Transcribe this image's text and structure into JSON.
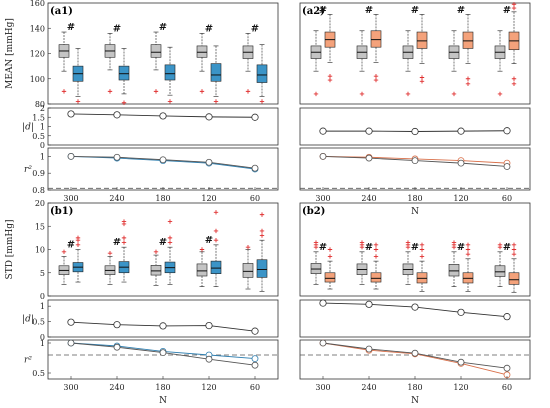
{
  "colors": {
    "gray": "#c4c4c4",
    "blue": "#3b94c7",
    "orange": "#f4a27b",
    "outlier": "#e03030",
    "line": "#333333",
    "dashed": "#555555"
  },
  "chart_data": {
    "type": "box-and-line",
    "panels": [
      {
        "label": "(a1)",
        "ylabel": "MEAN [mmHg]",
        "xticks": [
          "300",
          "240",
          "180",
          "120",
          "60"
        ],
        "xlabel": "",
        "box": {
          "ylim": [
            80,
            160
          ],
          "yticks": [
            "80",
            "100",
            "120",
            "140",
            "160"
          ],
          "groups": [
            {
              "n": "300",
              "gray": {
                "whislo": 106,
                "q1": 117,
                "med": 122,
                "q3": 127,
                "whishi": 137,
                "outliers": [
                  90
                ]
              },
              "color": {
                "whislo": 86,
                "q1": 98,
                "med": 104,
                "q3": 110,
                "whishi": 124,
                "outliers": [
                  82
                ]
              },
              "hash": true
            },
            {
              "n": "240",
              "gray": {
                "whislo": 107,
                "q1": 117,
                "med": 122,
                "q3": 127,
                "whishi": 136,
                "outliers": [
                  90
                ]
              },
              "color": {
                "whislo": 88,
                "q1": 99,
                "med": 104,
                "q3": 110,
                "whishi": 124,
                "outliers": [
                  81
                ]
              },
              "hash": true
            },
            {
              "n": "180",
              "gray": {
                "whislo": 107,
                "q1": 117,
                "med": 121,
                "q3": 127,
                "whishi": 137,
                "outliers": [
                  90
                ]
              },
              "color": {
                "whislo": 87,
                "q1": 99,
                "med": 104,
                "q3": 111,
                "whishi": 125,
                "outliers": [
                  82
                ]
              },
              "hash": true
            },
            {
              "n": "120",
              "gray": {
                "whislo": 106,
                "q1": 117,
                "med": 121,
                "q3": 126,
                "whishi": 136,
                "outliers": [
                  90
                ]
              },
              "color": {
                "whislo": 86,
                "q1": 98,
                "med": 103,
                "q3": 112,
                "whishi": 126,
                "outliers": [
                  82
                ]
              },
              "hash": true
            },
            {
              "n": "60",
              "gray": {
                "whislo": 106,
                "q1": 116,
                "med": 121,
                "q3": 126,
                "whishi": 136,
                "outliers": [
                  90
                ]
              },
              "color": {
                "whislo": 86,
                "q1": 97,
                "med": 103,
                "q3": 111,
                "whishi": 127,
                "outliers": [
                  82
                ]
              },
              "hash": true
            }
          ]
        },
        "d": {
          "ylim": [
            0,
            2
          ],
          "yticks": [
            "0",
            "0.5",
            "1",
            "1.5",
            "2"
          ],
          "values": [
            1.68,
            1.63,
            1.57,
            1.52,
            1.5
          ]
        },
        "r2": {
          "ylim": [
            0.8,
            1.05
          ],
          "yticks": [
            "0.8",
            "0.9",
            "1"
          ],
          "dashed": 0.81,
          "dark": [
            1.0,
            0.995,
            0.98,
            0.965,
            0.93
          ],
          "colored": [
            1.0,
            0.99,
            0.975,
            0.96,
            0.925
          ]
        }
      },
      {
        "label": "(a2)",
        "ylabel": "",
        "xticks": [
          "300",
          "240",
          "180",
          "120",
          "60"
        ],
        "xlabel": "N",
        "box": {
          "ylim": [
            80,
            160
          ],
          "yticks": [],
          "groups": [
            {
              "n": "300",
              "gray": {
                "whislo": 106,
                "q1": 116,
                "med": 121,
                "q3": 126,
                "whishi": 138,
                "outliers": [
                  88
                ]
              },
              "color": {
                "whislo": 113,
                "q1": 125,
                "med": 131,
                "q3": 137,
                "whishi": 151,
                "outliers": [
                  102,
                  99
                ]
              },
              "hash": true
            },
            {
              "n": "240",
              "gray": {
                "whislo": 106,
                "q1": 116,
                "med": 121,
                "q3": 126,
                "whishi": 138,
                "outliers": [
                  88
                ]
              },
              "color": {
                "whislo": 113,
                "q1": 125,
                "med": 131,
                "q3": 138,
                "whishi": 151,
                "outliers": [
                  102,
                  99
                ]
              },
              "hash": true
            },
            {
              "n": "180",
              "gray": {
                "whislo": 106,
                "q1": 116,
                "med": 121,
                "q3": 126,
                "whishi": 138,
                "outliers": [
                  88
                ]
              },
              "color": {
                "whislo": 112,
                "q1": 124,
                "med": 130,
                "q3": 137,
                "whishi": 151,
                "outliers": [
                  101,
                  98
                ]
              },
              "hash": true
            },
            {
              "n": "120",
              "gray": {
                "whislo": 106,
                "q1": 116,
                "med": 121,
                "q3": 126,
                "whishi": 138,
                "outliers": [
                  88
                ]
              },
              "color": {
                "whislo": 112,
                "q1": 124,
                "med": 130,
                "q3": 137,
                "whishi": 151,
                "outliers": [
                  100,
                  96
                ]
              },
              "hash": true
            },
            {
              "n": "60",
              "gray": {
                "whislo": 106,
                "q1": 116,
                "med": 121,
                "q3": 126,
                "whishi": 138,
                "outliers": [
                  88
                ]
              },
              "color": {
                "whislo": 112,
                "q1": 123,
                "med": 130,
                "q3": 137,
                "whishi": 153,
                "outliers": [
                  100,
                  96,
                  156,
                  159
                ]
              },
              "hash": true
            }
          ]
        },
        "d": {
          "ylim": [
            0,
            2
          ],
          "yticks": [],
          "values": [
            0.75,
            0.75,
            0.73,
            0.75,
            0.77
          ]
        },
        "r2": {
          "ylim": [
            0.8,
            1.05
          ],
          "yticks": [],
          "dashed": 0.81,
          "dark": [
            1.0,
            0.99,
            0.975,
            0.96,
            0.94
          ],
          "colored": [
            1.0,
            0.995,
            0.985,
            0.975,
            0.96
          ]
        }
      },
      {
        "label": "(b1)",
        "ylabel": "STD [mmHg]",
        "xticks": [
          "300",
          "240",
          "180",
          "120",
          "60"
        ],
        "xlabel": "N",
        "box": {
          "ylim": [
            0,
            20
          ],
          "yticks": [
            "0",
            "5",
            "10",
            "15",
            "20"
          ],
          "groups": [
            {
              "n": "300",
              "gray": {
                "whislo": 2.5,
                "q1": 4.6,
                "med": 5.5,
                "q3": 6.5,
                "whishi": 8.5,
                "outliers": [
                  9.5
                ]
              },
              "color": {
                "whislo": 3,
                "q1": 5.2,
                "med": 6.2,
                "q3": 7.2,
                "whishi": 10,
                "outliers": [
                  11,
                  12,
                  12.5
                ]
              },
              "hash": true
            },
            {
              "n": "240",
              "gray": {
                "whislo": 2.5,
                "q1": 4.6,
                "med": 5.5,
                "q3": 6.5,
                "whishi": 8.5,
                "outliers": [
                  9.2
                ]
              },
              "color": {
                "whislo": 3,
                "q1": 5,
                "med": 6.2,
                "q3": 7.4,
                "whishi": 10.5,
                "outliers": [
                  11.5,
                  12.5,
                  15.5,
                  16
                ]
              },
              "hash": true
            },
            {
              "n": "180",
              "gray": {
                "whislo": 2.3,
                "q1": 4.5,
                "med": 5.4,
                "q3": 6.6,
                "whishi": 8.8,
                "outliers": [
                  9.5
                ]
              },
              "color": {
                "whislo": 2.5,
                "q1": 5,
                "med": 6.1,
                "q3": 7.3,
                "whishi": 10.5,
                "outliers": [
                  11.5,
                  12.5,
                  16
                ]
              },
              "hash": true
            },
            {
              "n": "120",
              "gray": {
                "whislo": 2,
                "q1": 4.3,
                "med": 5.4,
                "q3": 6.9,
                "whishi": 9.5,
                "outliers": [
                  10
                ]
              },
              "color": {
                "whislo": 2,
                "q1": 4.8,
                "med": 6,
                "q3": 7.5,
                "whishi": 11,
                "outliers": [
                  12,
                  14,
                  18
                ]
              },
              "hash": true
            },
            {
              "n": "60",
              "gray": {
                "whislo": 1.5,
                "q1": 4,
                "med": 5.3,
                "q3": 7,
                "whishi": 10,
                "outliers": [
                  10.5
                ]
              },
              "color": {
                "whislo": 1,
                "q1": 4,
                "med": 5.7,
                "q3": 7.8,
                "whishi": 12,
                "outliers": [
                  13,
                  14,
                  17.5
                ]
              },
              "hash": false
            }
          ]
        },
        "d": {
          "ylim": [
            0,
            1.2
          ],
          "yticks": [
            "0",
            "0.5",
            "1"
          ],
          "values": [
            0.48,
            0.4,
            0.36,
            0.37,
            0.19
          ]
        },
        "r2": {
          "ylim": [
            0.4,
            1.05
          ],
          "yticks": [
            "0.5",
            "1"
          ],
          "dashed": 0.8,
          "dark": [
            1.0,
            0.93,
            0.84,
            0.73,
            0.63
          ],
          "colored": [
            1.0,
            0.95,
            0.86,
            0.8,
            0.74
          ]
        }
      },
      {
        "label": "(b2)",
        "ylabel": "",
        "xticks": [
          "300",
          "240",
          "180",
          "120",
          "60"
        ],
        "xlabel": "N",
        "box": {
          "ylim": [
            0,
            20
          ],
          "yticks": [],
          "groups": [
            {
              "n": "300",
              "gray": {
                "whislo": 2.5,
                "q1": 4.8,
                "med": 5.8,
                "q3": 7,
                "whishi": 9.5,
                "outliers": [
                  10.5,
                  11,
                  11.5
                ]
              },
              "color": {
                "whislo": 1.5,
                "q1": 3,
                "med": 3.8,
                "q3": 5,
                "whishi": 7.5,
                "outliers": [
                  8.5,
                  10
                ]
              },
              "hash": true
            },
            {
              "n": "240",
              "gray": {
                "whislo": 2.5,
                "q1": 4.6,
                "med": 5.7,
                "q3": 6.9,
                "whishi": 9.5,
                "outliers": [
                  10.5,
                  11,
                  11.5
                ]
              },
              "color": {
                "whislo": 1.5,
                "q1": 3,
                "med": 3.8,
                "q3": 5,
                "whishi": 7.5,
                "outliers": [
                  8.5,
                  10,
                  11
                ]
              },
              "hash": true
            },
            {
              "n": "180",
              "gray": {
                "whislo": 2.5,
                "q1": 4.6,
                "med": 5.7,
                "q3": 6.9,
                "whishi": 9.5,
                "outliers": [
                  10.5,
                  11,
                  11.5
                ]
              },
              "color": {
                "whislo": 1,
                "q1": 2.8,
                "med": 3.8,
                "q3": 5,
                "whishi": 7.5,
                "outliers": [
                  8.5,
                  10,
                  11
                ]
              },
              "hash": true
            },
            {
              "n": "120",
              "gray": {
                "whislo": 2,
                "q1": 4.3,
                "med": 5.4,
                "q3": 6.8,
                "whishi": 9.5,
                "outliers": [
                  10.5,
                  11,
                  11.5
                ]
              },
              "color": {
                "whislo": 1,
                "q1": 2.8,
                "med": 3.8,
                "q3": 5,
                "whishi": 8,
                "outliers": [
                  9,
                  10,
                  11
                ]
              },
              "hash": true
            },
            {
              "n": "60",
              "gray": {
                "whislo": 2,
                "q1": 4.2,
                "med": 5.2,
                "q3": 6.5,
                "whishi": 9.5,
                "outliers": [
                  10.5,
                  11
                ]
              },
              "color": {
                "whislo": 0.8,
                "q1": 2.5,
                "med": 3.5,
                "q3": 5,
                "whishi": 8,
                "outliers": [
                  9,
                  10,
                  11
                ]
              },
              "hash": true
            }
          ]
        },
        "d": {
          "ylim": [
            0,
            1.2
          ],
          "yticks": [],
          "values": [
            1.1,
            1.06,
            0.97,
            0.8,
            0.66
          ]
        },
        "r2": {
          "ylim": [
            0.4,
            1.05
          ],
          "yticks": [],
          "dashed": 0.8,
          "dark": [
            1.0,
            0.9,
            0.83,
            0.68,
            0.58
          ],
          "colored": [
            1.0,
            0.88,
            0.82,
            0.66,
            0.47
          ]
        }
      }
    ],
    "d_label": "|d|",
    "r2_label": "r²",
    "hash_symbol": "#"
  }
}
